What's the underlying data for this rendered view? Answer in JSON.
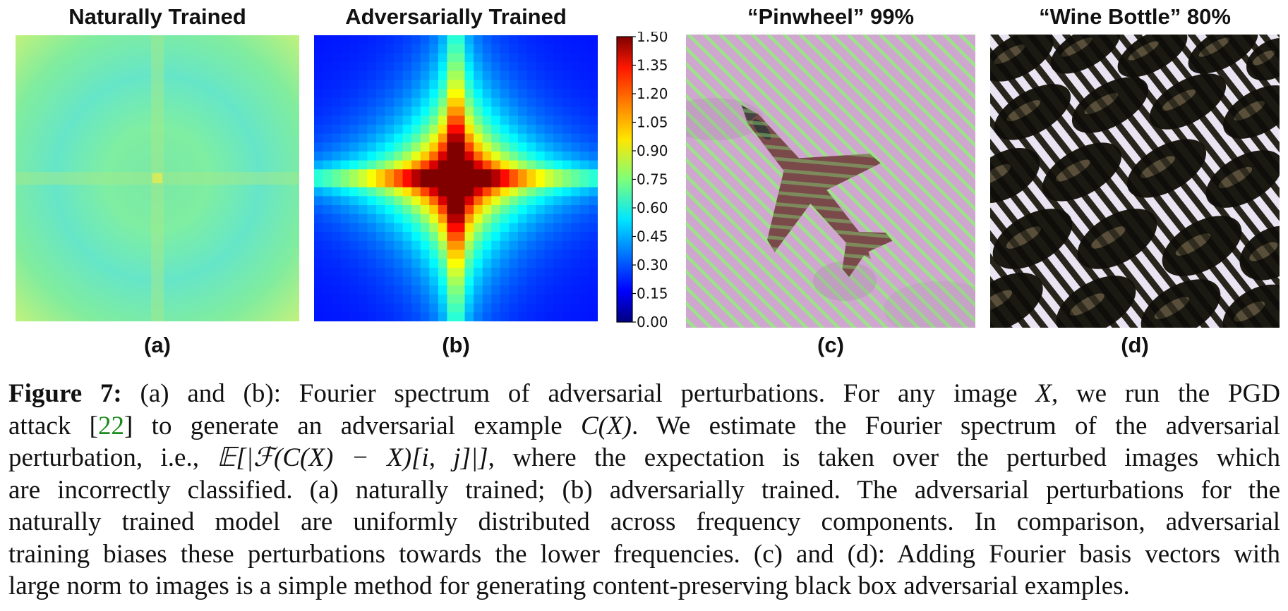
{
  "panels": [
    {
      "title": "Naturally Trained",
      "label": "(a)"
    },
    {
      "title": "Adversarially Trained",
      "label": "(b)"
    },
    {
      "title": "“Pinwheel” 99%",
      "label": "(c)"
    },
    {
      "title": "“Wine Bottle” 80%",
      "label": "(d)"
    }
  ],
  "colorbar": {
    "ticks": [
      "1.50",
      "1.35",
      "1.20",
      "1.05",
      "0.90",
      "0.75",
      "0.60",
      "0.45",
      "0.30",
      "0.15",
      "0.00"
    ],
    "colormap": "jet",
    "min": 0.0,
    "max": 1.5
  },
  "caption": {
    "fig_label": "Figure 7:",
    "l1a": " (a) and (b): Fourier spectrum of adversarial perturbations. For any image ",
    "l1m": "X",
    "l1b": ", we run the PGD",
    "l2a": "attack [",
    "cite": "22",
    "l2b": "] to generate an adversarial example ",
    "l2m": "C(X)",
    "l2c": ". We estimate the Fourier spectrum of the adversarial",
    "l3a": "perturbation, i.e., ",
    "l3m": "𝔼[|ℱ(C(X) − X)[i, j]|]",
    "l3b": ", where the expectation is taken over the perturbed images which",
    "l4": "are incorrectly classified. (a) naturally trained; (b) adversarially trained. The adversarial perturbations for the",
    "l5": "naturally trained model are uniformly distributed across frequency components. In comparison, adversarial",
    "l6": "training biases these perturbations towards the lower frequencies. (c) and (d): Adding Fourier basis vectors with",
    "l7": "large norm to images is a simple method for generating content-preserving black box adversarial examples."
  },
  "colors": {
    "natural_base": "#6ae8b8",
    "stripe_pink": "#cfa6cf",
    "stripe_green": "#9ee08c"
  }
}
